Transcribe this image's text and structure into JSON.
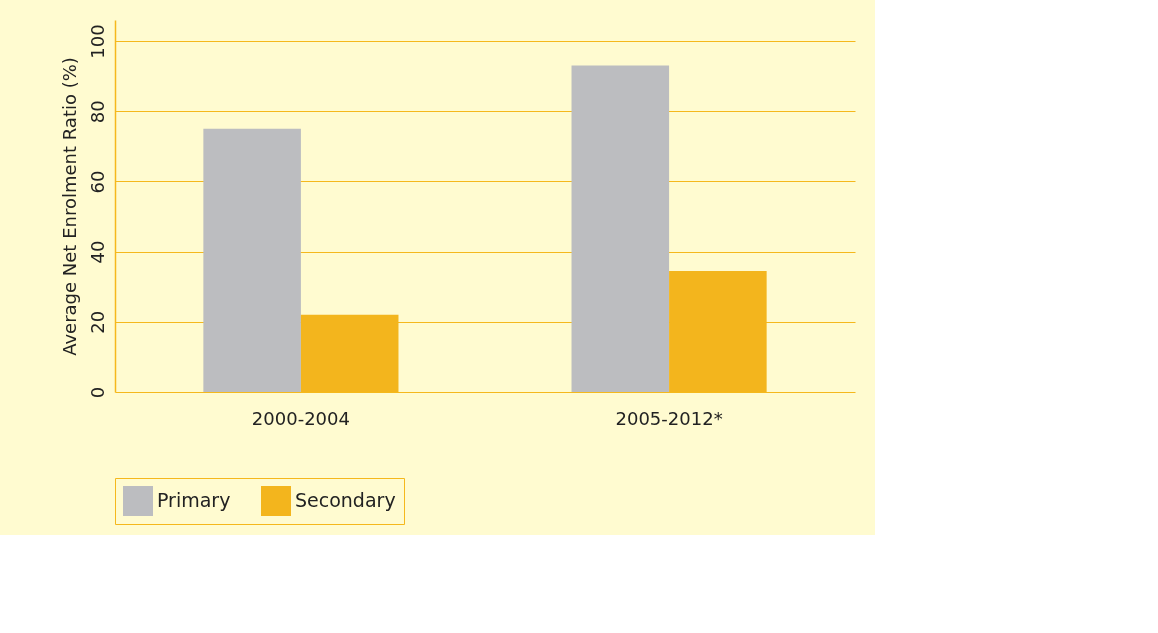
{
  "chart_data": {
    "type": "bar",
    "ylabel": "Average Net Enrolment Ratio (%)",
    "categories": [
      "2000-2004",
      "2005-2012*"
    ],
    "series": [
      {
        "name": "Primary",
        "color": "#bcbdc0",
        "values": [
          75,
          93
        ]
      },
      {
        "name": "Secondary",
        "color": "#f3b51d",
        "values": [
          22,
          34.5
        ]
      }
    ],
    "ylim": [
      0,
      106
    ],
    "yticks": [
      0,
      20,
      40,
      60,
      80,
      100
    ],
    "grid": "y",
    "legend": "bottom"
  }
}
